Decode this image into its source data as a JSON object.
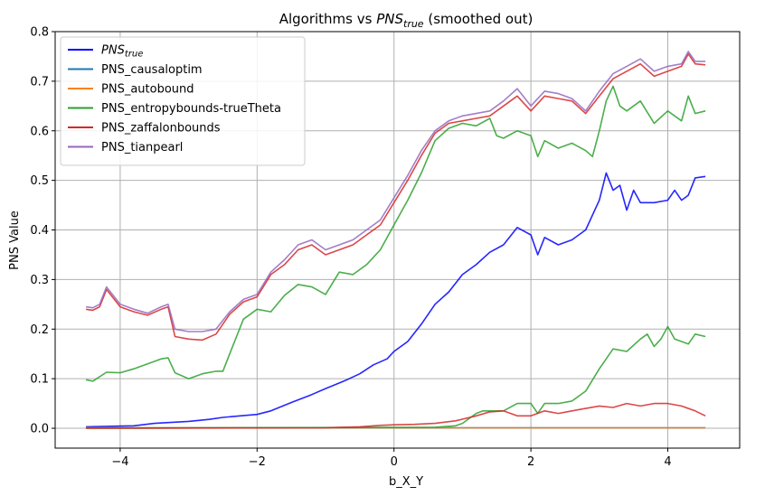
{
  "chart_data": {
    "type": "line",
    "title": "Algorithms vs ",
    "title_math_base": "PNS",
    "title_math_sub": "true",
    "title_suffix": " (smoothed out)",
    "xlabel": "b_X_Y",
    "ylabel": "PNS Value",
    "xlim": [
      -4.95,
      5.05
    ],
    "ylim": [
      -0.04,
      0.8
    ],
    "xticks": [
      -4,
      -2,
      0,
      2,
      4
    ],
    "xtick_labels": [
      "−4",
      "−2",
      "0",
      "2",
      "4"
    ],
    "yticks": [
      0.0,
      0.1,
      0.2,
      0.3,
      0.4,
      0.5,
      0.6,
      0.7,
      0.8
    ],
    "ytick_labels": [
      "0.0",
      "0.1",
      "0.2",
      "0.3",
      "0.4",
      "0.5",
      "0.6",
      "0.7",
      "0.8"
    ],
    "grid": true,
    "legend_position": "top-left",
    "series": [
      {
        "name": "PNS",
        "name_sub": "true",
        "color": "#0000ff",
        "points": [
          [
            -4.5,
            0.003
          ],
          [
            -4.2,
            0.004
          ],
          [
            -3.8,
            0.005
          ],
          [
            -3.5,
            0.01
          ],
          [
            -3.0,
            0.014
          ],
          [
            -2.7,
            0.018
          ],
          [
            -2.5,
            0.022
          ],
          [
            -2.0,
            0.028
          ],
          [
            -1.8,
            0.035
          ],
          [
            -1.5,
            0.052
          ],
          [
            -1.2,
            0.068
          ],
          [
            -1.0,
            0.08
          ],
          [
            -0.7,
            0.097
          ],
          [
            -0.5,
            0.11
          ],
          [
            -0.3,
            0.128
          ],
          [
            -0.1,
            0.14
          ],
          [
            0.0,
            0.155
          ],
          [
            0.2,
            0.175
          ],
          [
            0.4,
            0.21
          ],
          [
            0.6,
            0.25
          ],
          [
            0.8,
            0.275
          ],
          [
            1.0,
            0.31
          ],
          [
            1.2,
            0.33
          ],
          [
            1.4,
            0.355
          ],
          [
            1.6,
            0.37
          ],
          [
            1.8,
            0.405
          ],
          [
            2.0,
            0.39
          ],
          [
            2.1,
            0.35
          ],
          [
            2.2,
            0.385
          ],
          [
            2.4,
            0.37
          ],
          [
            2.6,
            0.38
          ],
          [
            2.8,
            0.4
          ],
          [
            3.0,
            0.46
          ],
          [
            3.1,
            0.515
          ],
          [
            3.2,
            0.48
          ],
          [
            3.3,
            0.49
          ],
          [
            3.4,
            0.44
          ],
          [
            3.5,
            0.48
          ],
          [
            3.6,
            0.455
          ],
          [
            3.8,
            0.455
          ],
          [
            4.0,
            0.46
          ],
          [
            4.1,
            0.48
          ],
          [
            4.2,
            0.46
          ],
          [
            4.3,
            0.47
          ],
          [
            4.4,
            0.505
          ],
          [
            4.55,
            0.508
          ]
        ]
      },
      {
        "name": "PNS_causaloptim",
        "color": "#1f77b4",
        "points": [
          [
            -4.5,
            0.001
          ],
          [
            4.55,
            0.001
          ]
        ]
      },
      {
        "name": "PNS_autobound",
        "color": "#ff7f0e",
        "points": [
          [
            -4.5,
            0.001
          ],
          [
            4.55,
            0.001
          ]
        ]
      },
      {
        "name": "PNS_entropybounds-trueTheta",
        "color": "#2ca02c",
        "points": [
          [
            -4.5,
            0.098
          ],
          [
            -4.4,
            0.095
          ],
          [
            -4.2,
            0.113
          ],
          [
            -4.0,
            0.112
          ],
          [
            -3.8,
            0.12
          ],
          [
            -3.6,
            0.13
          ],
          [
            -3.4,
            0.14
          ],
          [
            -3.3,
            0.142
          ],
          [
            -3.2,
            0.112
          ],
          [
            -3.0,
            0.1
          ],
          [
            -2.8,
            0.11
          ],
          [
            -2.6,
            0.115
          ],
          [
            -2.5,
            0.115
          ],
          [
            -2.4,
            0.15
          ],
          [
            -2.2,
            0.22
          ],
          [
            -2.0,
            0.24
          ],
          [
            -1.8,
            0.235
          ],
          [
            -1.6,
            0.268
          ],
          [
            -1.4,
            0.29
          ],
          [
            -1.2,
            0.285
          ],
          [
            -1.0,
            0.27
          ],
          [
            -0.8,
            0.315
          ],
          [
            -0.6,
            0.31
          ],
          [
            -0.4,
            0.33
          ],
          [
            -0.2,
            0.36
          ],
          [
            0.0,
            0.41
          ],
          [
            0.2,
            0.46
          ],
          [
            0.4,
            0.515
          ],
          [
            0.6,
            0.58
          ],
          [
            0.8,
            0.605
          ],
          [
            1.0,
            0.615
          ],
          [
            1.2,
            0.61
          ],
          [
            1.4,
            0.625
          ],
          [
            1.5,
            0.59
          ],
          [
            1.6,
            0.585
          ],
          [
            1.8,
            0.6
          ],
          [
            2.0,
            0.59
          ],
          [
            2.1,
            0.548
          ],
          [
            2.2,
            0.58
          ],
          [
            2.4,
            0.565
          ],
          [
            2.6,
            0.575
          ],
          [
            2.8,
            0.56
          ],
          [
            2.9,
            0.548
          ],
          [
            3.0,
            0.6
          ],
          [
            3.1,
            0.66
          ],
          [
            3.2,
            0.69
          ],
          [
            3.3,
            0.65
          ],
          [
            3.4,
            0.64
          ],
          [
            3.6,
            0.66
          ],
          [
            3.8,
            0.615
          ],
          [
            4.0,
            0.64
          ],
          [
            4.2,
            0.62
          ],
          [
            4.3,
            0.67
          ],
          [
            4.4,
            0.635
          ],
          [
            4.55,
            0.64
          ]
        ]
      },
      {
        "name": "PNS_entropybounds-trueTheta",
        "color": "#2ca02c",
        "points": [
          [
            -4.5,
            0.0
          ],
          [
            0.6,
            0.002
          ],
          [
            0.9,
            0.005
          ],
          [
            1.0,
            0.01
          ],
          [
            1.2,
            0.03
          ],
          [
            1.3,
            0.035
          ],
          [
            1.5,
            0.035
          ],
          [
            1.6,
            0.035
          ],
          [
            1.8,
            0.05
          ],
          [
            2.0,
            0.05
          ],
          [
            2.1,
            0.03
          ],
          [
            2.2,
            0.05
          ],
          [
            2.4,
            0.05
          ],
          [
            2.6,
            0.055
          ],
          [
            2.8,
            0.075
          ],
          [
            3.0,
            0.12
          ],
          [
            3.2,
            0.16
          ],
          [
            3.4,
            0.155
          ],
          [
            3.6,
            0.18
          ],
          [
            3.7,
            0.19
          ],
          [
            3.8,
            0.165
          ],
          [
            3.9,
            0.18
          ],
          [
            4.0,
            0.205
          ],
          [
            4.1,
            0.18
          ],
          [
            4.3,
            0.17
          ],
          [
            4.4,
            0.19
          ],
          [
            4.55,
            0.185
          ]
        ]
      },
      {
        "name": "PNS_zaffalonbounds",
        "color": "#d62728",
        "points": [
          [
            -4.5,
            0.24
          ],
          [
            -4.4,
            0.238
          ],
          [
            -4.3,
            0.245
          ],
          [
            -4.2,
            0.28
          ],
          [
            -4.0,
            0.245
          ],
          [
            -3.8,
            0.235
          ],
          [
            -3.6,
            0.228
          ],
          [
            -3.4,
            0.24
          ],
          [
            -3.3,
            0.245
          ],
          [
            -3.2,
            0.185
          ],
          [
            -3.0,
            0.18
          ],
          [
            -2.8,
            0.178
          ],
          [
            -2.6,
            0.19
          ],
          [
            -2.4,
            0.23
          ],
          [
            -2.2,
            0.255
          ],
          [
            -2.0,
            0.265
          ],
          [
            -1.8,
            0.31
          ],
          [
            -1.6,
            0.33
          ],
          [
            -1.4,
            0.36
          ],
          [
            -1.2,
            0.37
          ],
          [
            -1.0,
            0.35
          ],
          [
            -0.8,
            0.36
          ],
          [
            -0.6,
            0.37
          ],
          [
            -0.4,
            0.39
          ],
          [
            -0.2,
            0.41
          ],
          [
            0.0,
            0.455
          ],
          [
            0.2,
            0.5
          ],
          [
            0.4,
            0.55
          ],
          [
            0.6,
            0.595
          ],
          [
            0.8,
            0.615
          ],
          [
            1.0,
            0.62
          ],
          [
            1.2,
            0.625
          ],
          [
            1.4,
            0.63
          ],
          [
            1.6,
            0.65
          ],
          [
            1.8,
            0.67
          ],
          [
            2.0,
            0.64
          ],
          [
            2.2,
            0.67
          ],
          [
            2.4,
            0.665
          ],
          [
            2.6,
            0.66
          ],
          [
            2.8,
            0.635
          ],
          [
            3.0,
            0.67
          ],
          [
            3.2,
            0.705
          ],
          [
            3.4,
            0.72
          ],
          [
            3.6,
            0.735
          ],
          [
            3.8,
            0.71
          ],
          [
            4.0,
            0.72
          ],
          [
            4.2,
            0.73
          ],
          [
            4.3,
            0.755
          ],
          [
            4.4,
            0.735
          ],
          [
            4.55,
            0.733
          ]
        ]
      },
      {
        "name": "PNS_zaffalonbounds",
        "color": "#d62728",
        "points": [
          [
            -4.5,
            0.0
          ],
          [
            -1.0,
            0.001
          ],
          [
            -0.5,
            0.003
          ],
          [
            -0.2,
            0.006
          ],
          [
            0.0,
            0.007
          ],
          [
            0.3,
            0.008
          ],
          [
            0.6,
            0.01
          ],
          [
            0.9,
            0.015
          ],
          [
            1.2,
            0.025
          ],
          [
            1.4,
            0.033
          ],
          [
            1.6,
            0.035
          ],
          [
            1.8,
            0.025
          ],
          [
            2.0,
            0.025
          ],
          [
            2.2,
            0.035
          ],
          [
            2.4,
            0.03
          ],
          [
            2.6,
            0.035
          ],
          [
            2.8,
            0.04
          ],
          [
            3.0,
            0.045
          ],
          [
            3.2,
            0.042
          ],
          [
            3.4,
            0.05
          ],
          [
            3.6,
            0.045
          ],
          [
            3.8,
            0.05
          ],
          [
            4.0,
            0.05
          ],
          [
            4.2,
            0.045
          ],
          [
            4.4,
            0.035
          ],
          [
            4.55,
            0.025
          ]
        ]
      },
      {
        "name": "PNS_tianpearl",
        "color": "#9467bd",
        "points": [
          [
            -4.5,
            0.245
          ],
          [
            -4.4,
            0.243
          ],
          [
            -4.3,
            0.25
          ],
          [
            -4.2,
            0.285
          ],
          [
            -4.0,
            0.25
          ],
          [
            -3.8,
            0.24
          ],
          [
            -3.6,
            0.232
          ],
          [
            -3.4,
            0.245
          ],
          [
            -3.3,
            0.25
          ],
          [
            -3.2,
            0.2
          ],
          [
            -3.0,
            0.195
          ],
          [
            -2.8,
            0.195
          ],
          [
            -2.6,
            0.2
          ],
          [
            -2.4,
            0.235
          ],
          [
            -2.2,
            0.26
          ],
          [
            -2.0,
            0.27
          ],
          [
            -1.8,
            0.315
          ],
          [
            -1.6,
            0.34
          ],
          [
            -1.4,
            0.37
          ],
          [
            -1.2,
            0.38
          ],
          [
            -1.0,
            0.36
          ],
          [
            -0.8,
            0.37
          ],
          [
            -0.6,
            0.38
          ],
          [
            -0.4,
            0.4
          ],
          [
            -0.2,
            0.42
          ],
          [
            0.0,
            0.465
          ],
          [
            0.2,
            0.51
          ],
          [
            0.4,
            0.56
          ],
          [
            0.6,
            0.6
          ],
          [
            0.8,
            0.62
          ],
          [
            1.0,
            0.63
          ],
          [
            1.2,
            0.635
          ],
          [
            1.4,
            0.64
          ],
          [
            1.6,
            0.66
          ],
          [
            1.8,
            0.685
          ],
          [
            2.0,
            0.65
          ],
          [
            2.2,
            0.68
          ],
          [
            2.4,
            0.675
          ],
          [
            2.6,
            0.665
          ],
          [
            2.8,
            0.64
          ],
          [
            3.0,
            0.68
          ],
          [
            3.2,
            0.715
          ],
          [
            3.4,
            0.73
          ],
          [
            3.6,
            0.745
          ],
          [
            3.8,
            0.72
          ],
          [
            4.0,
            0.73
          ],
          [
            4.2,
            0.735
          ],
          [
            4.3,
            0.76
          ],
          [
            4.4,
            0.74
          ],
          [
            4.55,
            0.74
          ]
        ]
      }
    ],
    "legend": [
      {
        "name": "PNS",
        "name_sub": "true",
        "color": "#0000ff"
      },
      {
        "name": "PNS_causaloptim",
        "color": "#1f77b4"
      },
      {
        "name": "PNS_autobound",
        "color": "#ff7f0e"
      },
      {
        "name": "PNS_entropybounds-trueTheta",
        "color": "#2ca02c"
      },
      {
        "name": "PNS_zaffalonbounds",
        "color": "#d62728"
      },
      {
        "name": "PNS_tianpearl",
        "color": "#9467bd"
      }
    ]
  }
}
